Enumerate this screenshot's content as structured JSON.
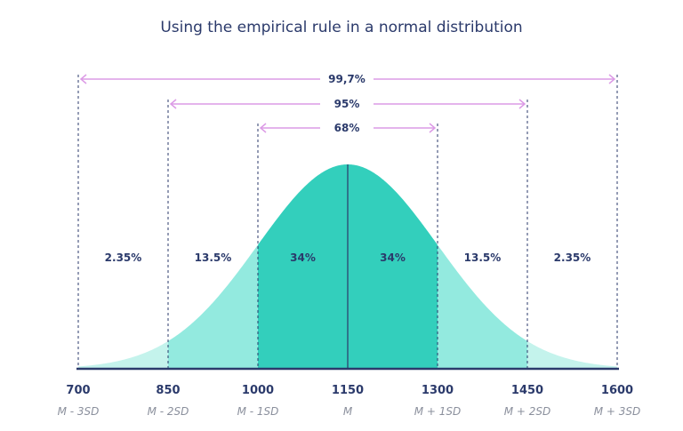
{
  "title": "Using the empirical rule in a normal distribution",
  "chart_data": {
    "type": "area",
    "mean": 1150,
    "sd": 150,
    "xlim": [
      700,
      1600
    ],
    "ticks": [
      700,
      850,
      1000,
      1150,
      1300,
      1450,
      1600
    ],
    "tick_sublabels": [
      "M - 3SD",
      "M - 2SD",
      "M - 1SD",
      "M",
      "M + 1SD",
      "M + 2SD",
      "M + 3SD"
    ],
    "region_labels": [
      "2.35%",
      "13.5%",
      "34%",
      "34%",
      "13.5%",
      "2.35%"
    ],
    "ranges": [
      {
        "label": "99,7%",
        "from": 700,
        "to": 1600
      },
      {
        "label": "95%",
        "from": 850,
        "to": 1450
      },
      {
        "label": "68%",
        "from": 1000,
        "to": 1300
      }
    ],
    "colors": {
      "center": "#33cfbc",
      "middle": "#93eadf",
      "tail": "#c4f3ec",
      "axis": "#2b3a6b",
      "arrow": "#dc9be6"
    }
  }
}
